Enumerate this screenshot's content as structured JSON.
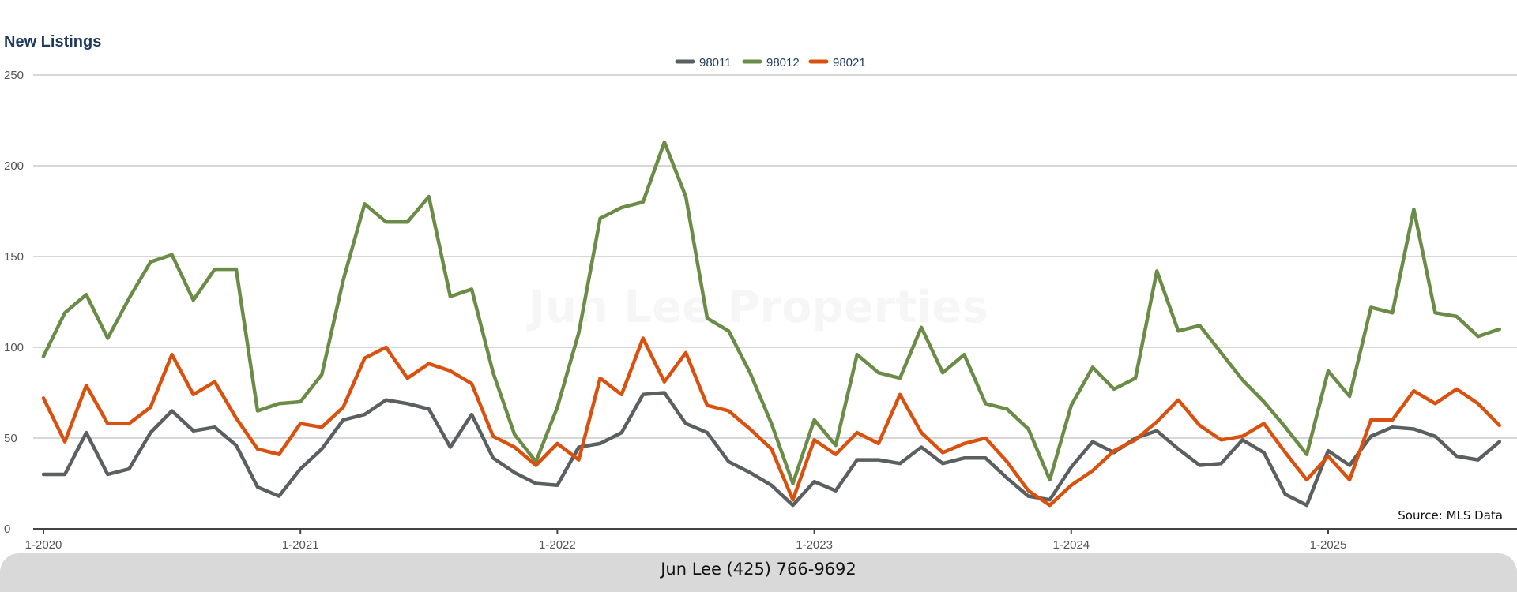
{
  "footer": {
    "contact": "Jun Lee (425) 766-9692"
  },
  "colors": {
    "98011": "#5a5f62",
    "98012": "#6a8c47",
    "98021": "#d9510f"
  },
  "chart_data": {
    "type": "line",
    "title": "New Listings",
    "source": "Source: MLS Data",
    "watermark": "Jun Lee Properties",
    "ylim": [
      0,
      250
    ],
    "yticks": [
      0,
      50,
      100,
      150,
      200,
      250
    ],
    "xticks": [
      "1-2020",
      "1-2021",
      "1-2022",
      "1-2023",
      "1-2024",
      "1-2025"
    ],
    "legend_position": "top-center",
    "grid": true,
    "x_start": "2020-01",
    "x_end": "2025-09",
    "series": [
      {
        "name": "98011",
        "values": [
          30,
          30,
          53,
          30,
          33,
          53,
          65,
          54,
          56,
          46,
          23,
          18,
          33,
          44,
          60,
          63,
          71,
          69,
          66,
          45,
          63,
          39,
          31,
          25,
          24,
          45,
          47,
          53,
          74,
          75,
          58,
          53,
          37,
          31,
          24,
          13,
          26,
          21,
          38,
          38,
          36,
          45,
          36,
          39,
          39,
          28,
          18,
          16,
          34,
          48,
          42,
          50,
          54,
          44,
          35,
          36,
          49,
          42,
          19,
          13,
          43,
          35,
          51,
          56,
          55,
          51,
          40,
          38,
          48
        ]
      },
      {
        "name": "98012",
        "values": [
          95,
          119,
          129,
          105,
          127,
          147,
          151,
          126,
          143,
          143,
          65,
          69,
          70,
          85,
          137,
          179,
          169,
          169,
          183,
          128,
          132,
          86,
          52,
          37,
          67,
          108,
          171,
          177,
          180,
          213,
          183,
          116,
          109,
          86,
          58,
          25,
          60,
          46,
          96,
          86,
          83,
          111,
          86,
          96,
          69,
          66,
          55,
          27,
          68,
          89,
          77,
          83,
          142,
          109,
          112,
          97,
          82,
          70,
          56,
          41,
          87,
          73,
          122,
          119,
          176,
          119,
          117,
          106,
          110
        ]
      },
      {
        "name": "98021",
        "values": [
          72,
          48,
          79,
          58,
          58,
          67,
          96,
          74,
          81,
          61,
          44,
          41,
          58,
          56,
          67,
          94,
          100,
          83,
          91,
          87,
          80,
          51,
          45,
          35,
          47,
          38,
          83,
          74,
          105,
          81,
          97,
          68,
          65,
          55,
          44,
          16,
          49,
          41,
          53,
          47,
          74,
          53,
          42,
          47,
          50,
          37,
          21,
          13,
          24,
          32,
          43,
          49,
          59,
          71,
          57,
          49,
          51,
          58,
          42,
          27,
          40,
          27,
          60,
          60,
          76,
          69,
          77,
          69,
          57
        ]
      }
    ]
  }
}
